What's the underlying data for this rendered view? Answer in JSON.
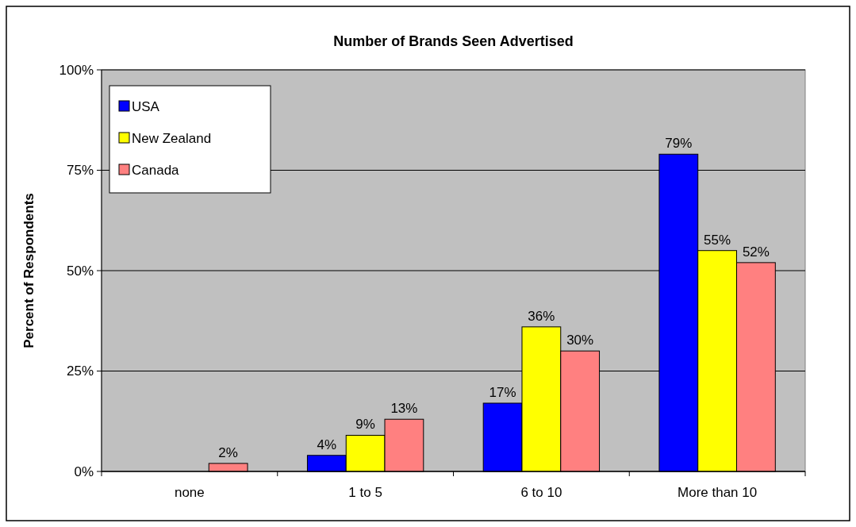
{
  "chart_data": {
    "type": "bar",
    "title": "Number of Brands Seen Advertised",
    "ylabel": "Percent of Respondents",
    "categories": [
      "none",
      "1 to 5",
      "6 to 10",
      "More than 10"
    ],
    "series": [
      {
        "name": "USA",
        "color": "#0000ff",
        "values": [
          null,
          4,
          17,
          79
        ],
        "value_labels": [
          null,
          "4%",
          "17%",
          "79%"
        ]
      },
      {
        "name": "New Zealand",
        "color": "#ffff00",
        "values": [
          null,
          9,
          36,
          55
        ],
        "value_labels": [
          null,
          "9%",
          "36%",
          "55%"
        ]
      },
      {
        "name": "Canada",
        "color": "#ff8080",
        "values": [
          2,
          13,
          30,
          52
        ],
        "value_labels": [
          "2%",
          "13%",
          "30%",
          "52%"
        ]
      }
    ],
    "ylim": [
      0,
      100
    ],
    "yticks": [
      {
        "value": 0,
        "label": "0%"
      },
      {
        "value": 25,
        "label": "25%"
      },
      {
        "value": 50,
        "label": "50%"
      },
      {
        "value": 75,
        "label": "75%"
      },
      {
        "value": 100,
        "label": "100%"
      }
    ],
    "grid": "y",
    "legend": "top left"
  }
}
